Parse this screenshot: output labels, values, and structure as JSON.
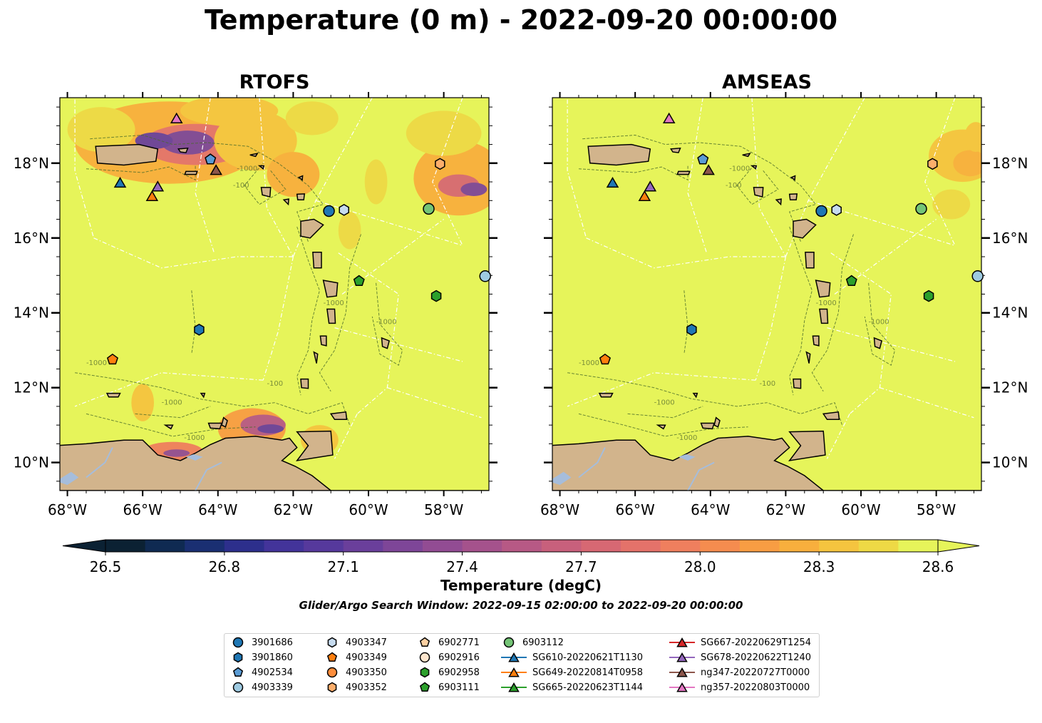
{
  "title": "Temperature (0 m) - 2022-09-20 00:00:00",
  "panels": [
    {
      "title": "RTOFS"
    },
    {
      "title": "AMSEAS"
    }
  ],
  "axes": {
    "lon_ticks": [
      "68°W",
      "66°W",
      "64°W",
      "62°W",
      "60°W",
      "58°W"
    ],
    "lat_ticks": [
      "18°N",
      "16°N",
      "14°N",
      "12°N",
      "10°N"
    ]
  },
  "map_extent": {
    "lon_min": -68.2,
    "lon_max": -56.8,
    "lat_min": 9.25,
    "lat_max": 19.75
  },
  "contour_labels": [
    "-1000",
    "-100"
  ],
  "colorbar": {
    "label": "Temperature (degC)",
    "ticks": [
      "26.5",
      "26.8",
      "27.1",
      "27.4",
      "27.7",
      "28.0",
      "28.3",
      "28.6"
    ],
    "min": 26.5,
    "max": 28.6,
    "colors": [
      "#0b2133",
      "#0f2a52",
      "#1a2f72",
      "#2d2f8c",
      "#43349a",
      "#56399c",
      "#6a3f9b",
      "#7e4698",
      "#924c93",
      "#a5528c",
      "#b75985",
      "#c8607c",
      "#d76873",
      "#e4726a",
      "#ef7f5e",
      "#f58c4f",
      "#f89d43",
      "#f8af3d",
      "#f5c43f",
      "#eed945",
      "#e6f45a"
    ]
  },
  "search_window": "Glider/Argo Search Window: 2022-09-15 02:00:00 to 2022-09-20 00:00:00",
  "map_colors": {
    "land": "#d2b48c",
    "sea": "#e6f45a",
    "lakes": "#a6bddb",
    "eez": "#ffffff",
    "contour": "#4a6b2a"
  },
  "platforms": [
    {
      "id": "3901686",
      "marker": "circle",
      "color": "#1f77b4",
      "lon": -61.05,
      "lat": 16.72
    },
    {
      "id": "3901860",
      "marker": "hexagon",
      "color": "#1f77b4",
      "lon": -64.5,
      "lat": 13.55
    },
    {
      "id": "4902534",
      "marker": "pentagon",
      "color": "#5a9bd4",
      "lon": -64.2,
      "lat": 18.1
    },
    {
      "id": "4903339",
      "marker": "circle",
      "color": "#9ecae1",
      "lon": -56.9,
      "lat": 14.98
    },
    {
      "id": "4903347",
      "marker": "hexagon",
      "color": "#c6dbef",
      "lon": -60.65,
      "lat": 16.75
    },
    {
      "id": "4903349",
      "marker": "pentagon",
      "color": "#ff7f0e",
      "lon": -66.8,
      "lat": 12.75
    },
    {
      "id": "4903350",
      "marker": "circle",
      "color": "#fd8d3c",
      "lon": null,
      "lat": null
    },
    {
      "id": "4903352",
      "marker": "hexagon",
      "color": "#fdae6b",
      "lon": -58.1,
      "lat": 17.98
    },
    {
      "id": "6902771",
      "marker": "pentagon",
      "color": "#fdd0a2",
      "lon": null,
      "lat": null
    },
    {
      "id": "6902916",
      "marker": "circle",
      "color": "#fee6ce",
      "lon": null,
      "lat": null
    },
    {
      "id": "6902958",
      "marker": "hexagon",
      "color": "#2ca02c",
      "lon": -58.2,
      "lat": 14.45
    },
    {
      "id": "6903111",
      "marker": "pentagon",
      "color": "#2ca02c",
      "lon": -60.25,
      "lat": 14.85
    },
    {
      "id": "6903112",
      "marker": "circle",
      "color": "#74c476",
      "lon": -58.4,
      "lat": 16.78
    },
    {
      "id": "SG610-20220621T1130",
      "marker": "triangle",
      "color": "#1f77b4",
      "line": true,
      "lon": -66.6,
      "lat": 17.48
    },
    {
      "id": "SG649-20220814T0958",
      "marker": "triangle",
      "color": "#ff7f0e",
      "line": true,
      "lon": -65.75,
      "lat": 17.12
    },
    {
      "id": "SG665-20220623T1144",
      "marker": "triangle",
      "color": "#2ca02c",
      "line": true,
      "lon": null,
      "lat": null
    },
    {
      "id": "SG667-20220629T1254",
      "marker": "triangle",
      "color": "#d62728",
      "line": true,
      "lon": null,
      "lat": null
    },
    {
      "id": "SG678-20220622T1240",
      "marker": "triangle",
      "color": "#9467bd",
      "line": true,
      "lon": -65.6,
      "lat": 17.38
    },
    {
      "id": "ng347-20220727T0000",
      "marker": "triangle",
      "color": "#8c564b",
      "line": true,
      "lon": -64.05,
      "lat": 17.82
    },
    {
      "id": "ng357-20220803T0000",
      "marker": "triangle",
      "color": "#e377c2",
      "line": true,
      "lon": -65.1,
      "lat": 19.2
    }
  ]
}
